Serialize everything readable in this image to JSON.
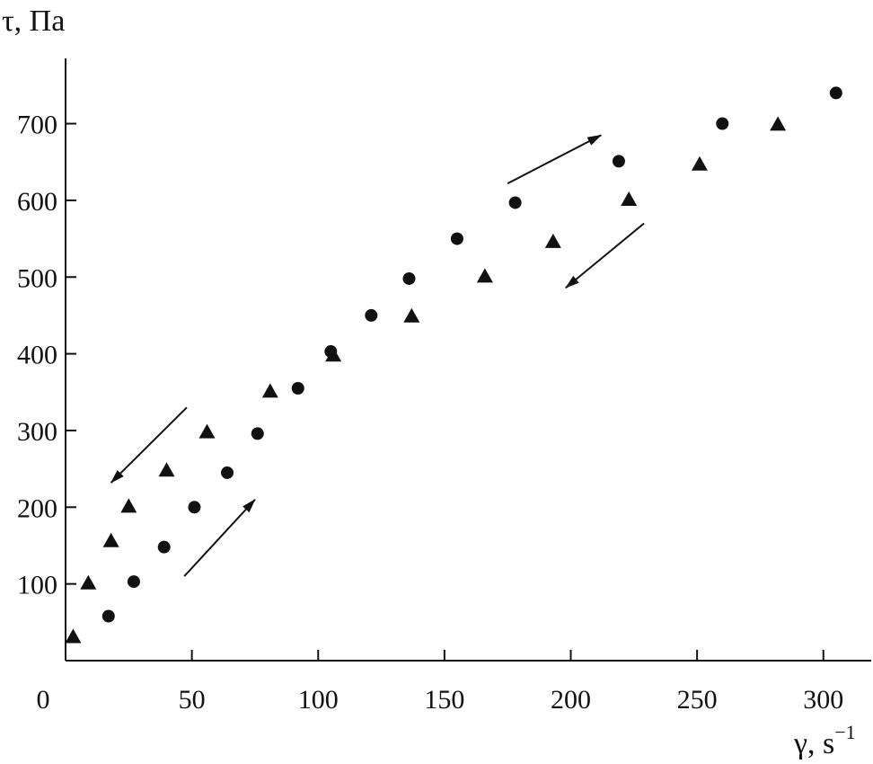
{
  "chart_data": {
    "type": "scatter",
    "title": "",
    "xlabel": "γ, s",
    "xlabel_exponent": "−1",
    "ylabel": "τ, Па",
    "xlim": [
      0,
      320
    ],
    "ylim": [
      0,
      790
    ],
    "x_ticks": [
      0,
      50,
      100,
      150,
      200,
      250,
      300
    ],
    "y_ticks": [
      100,
      200,
      300,
      400,
      500,
      600,
      700
    ],
    "grid": false,
    "legend": "none",
    "series": [
      {
        "marker": "circle",
        "points": [
          [
            17,
            58
          ],
          [
            27,
            103
          ],
          [
            39,
            148
          ],
          [
            51,
            200
          ],
          [
            64,
            245
          ],
          [
            76,
            296
          ],
          [
            92,
            355
          ],
          [
            105,
            403
          ],
          [
            121,
            450
          ],
          [
            136,
            498
          ],
          [
            155,
            550
          ],
          [
            178,
            597
          ],
          [
            219,
            651
          ],
          [
            260,
            700
          ],
          [
            305,
            740
          ]
        ]
      },
      {
        "marker": "triangle",
        "points": [
          [
            3,
            30
          ],
          [
            9,
            100
          ],
          [
            18,
            155
          ],
          [
            25,
            200
          ],
          [
            40,
            247
          ],
          [
            56,
            297
          ],
          [
            81,
            350
          ],
          [
            106,
            397
          ],
          [
            137,
            448
          ],
          [
            166,
            500
          ],
          [
            193,
            545
          ],
          [
            223,
            600
          ],
          [
            251,
            646
          ],
          [
            282,
            698
          ]
        ]
      }
    ],
    "annotations": [
      {
        "type": "arrow",
        "from": [
          47,
          110
        ],
        "to": [
          75,
          210
        ]
      },
      {
        "type": "arrow",
        "from": [
          48,
          330
        ],
        "to": [
          18,
          232
        ]
      },
      {
        "type": "arrow",
        "from": [
          175,
          622
        ],
        "to": [
          212,
          685
        ]
      },
      {
        "type": "arrow",
        "from": [
          229,
          570
        ],
        "to": [
          198,
          486
        ]
      }
    ],
    "colors": {
      "marker": "#111111",
      "axis": "#111111",
      "background": "#ffffff"
    }
  }
}
